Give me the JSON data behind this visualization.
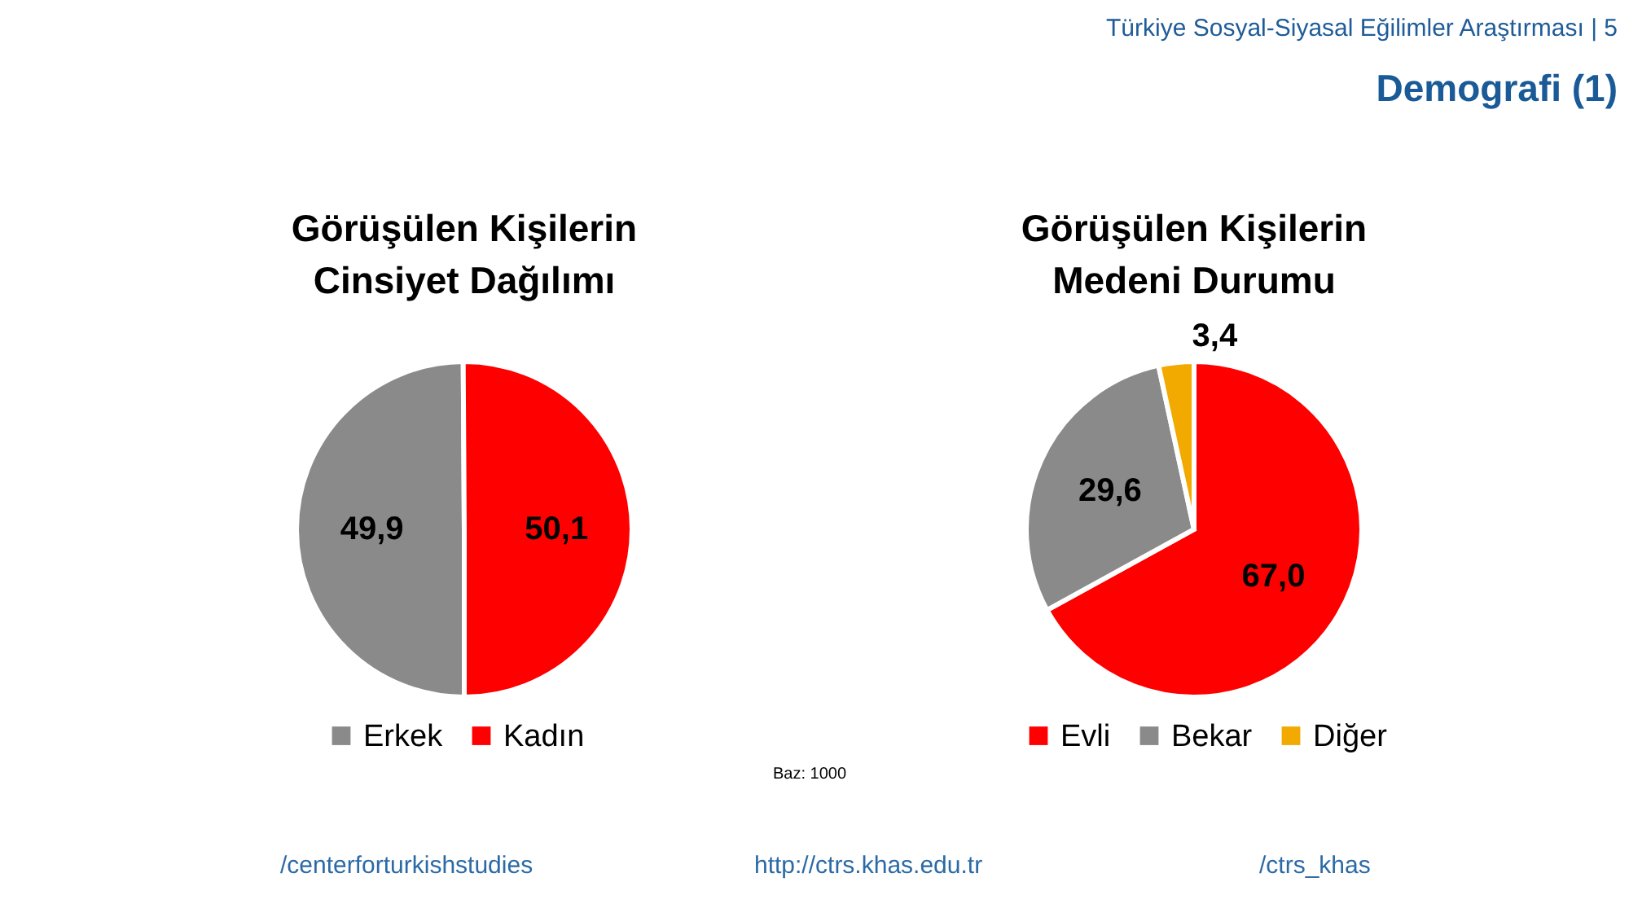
{
  "chart_data": [
    {
      "type": "other",
      "title": "Demografi (1)",
      "subtitle": "Türkiye Sosyal-Siyasal Eğilimler Araştırması | 5"
    },
    {
      "type": "pie",
      "title": "Görüşülen Kişilerin Cinsiyet Dağılımı",
      "categories": [
        "Erkek",
        "Kadın"
      ],
      "values": [
        49.9,
        50.1
      ],
      "colors": [
        "#8a8a8a",
        "#ff0000"
      ],
      "value_labels": [
        "49,9",
        "50,1"
      ],
      "legend": "bottom"
    },
    {
      "type": "pie",
      "title": "Görüşülen Kişilerin Medeni Durumu",
      "categories": [
        "Evli",
        "Bekar",
        "Diğer"
      ],
      "values": [
        67.0,
        29.6,
        3.4
      ],
      "colors": [
        "#ff0000",
        "#8a8a8a",
        "#f2a900"
      ],
      "value_labels": [
        "67,0",
        "29,6",
        "3,4"
      ],
      "legend": "bottom"
    },
    {
      "type": "other",
      "annotations": [
        "Baz: 1000",
        "/centerforturkishstudies",
        "http://ctrs.khas.edu.tr",
        "/ctrs_khas"
      ]
    }
  ]
}
